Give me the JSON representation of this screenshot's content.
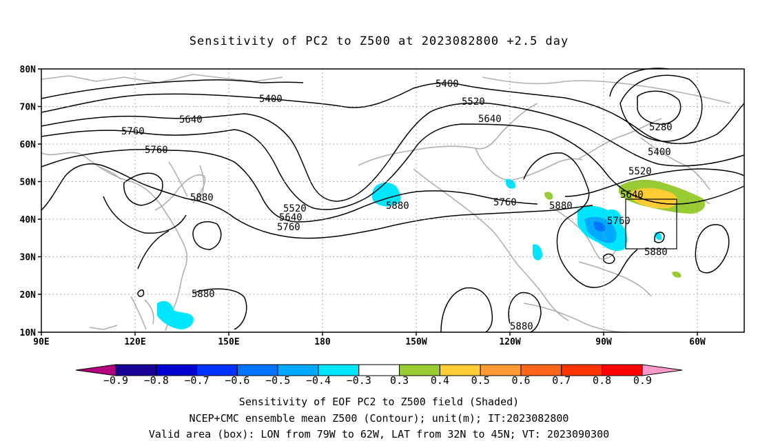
{
  "title": "Sensitivity of PC2 to Z500 at 2023082800 +2.5 day",
  "map": {
    "lat_ticks": [
      "80N",
      "70N",
      "60N",
      "50N",
      "40N",
      "30N",
      "20N",
      "10N"
    ],
    "lon_ticks": [
      "90E",
      "120E",
      "150E",
      "180",
      "150W",
      "120W",
      "90W",
      "60W"
    ],
    "contour_labels": [
      "5400",
      "5400",
      "5520",
      "5640",
      "5640",
      "5760",
      "5760",
      "5280",
      "5400",
      "5520",
      "5640",
      "5880",
      "5520",
      "5640",
      "5760",
      "5880",
      "5760",
      "5880",
      "5760",
      "5880",
      "5880",
      "5880"
    ],
    "valid_area_box": {
      "lon_west": "79W",
      "lon_east": "62W",
      "lat_south": "32N",
      "lat_north": "45N"
    }
  },
  "colorbar": {
    "labels": [
      "−0.9",
      "−0.8",
      "−0.7",
      "−0.6",
      "−0.5",
      "−0.4",
      "−0.3",
      "0.3",
      "0.4",
      "0.5",
      "0.6",
      "0.7",
      "0.8",
      "0.9"
    ],
    "colors": [
      "#1a0096",
      "#0000d2",
      "#0033ff",
      "#0073ff",
      "#00aaff",
      "#00e6ff",
      "#ffffff",
      "#99cc33",
      "#ffcc33",
      "#ff9933",
      "#ff6619",
      "#ff3300",
      "#ff0000"
    ],
    "left_arrow_color": "#b4007f",
    "right_arrow_color": "#ff99cc"
  },
  "footer": {
    "line1": "Sensitivity of EOF PC2 to Z500 field (Shaded)",
    "line2": "NCEP+CMC ensemble mean Z500 (Contour); unit(m); IT:2023082800",
    "line3": "Valid area (box): LON from 79W to 62W, LAT from 32N to 45N; VT: 2023090300"
  }
}
